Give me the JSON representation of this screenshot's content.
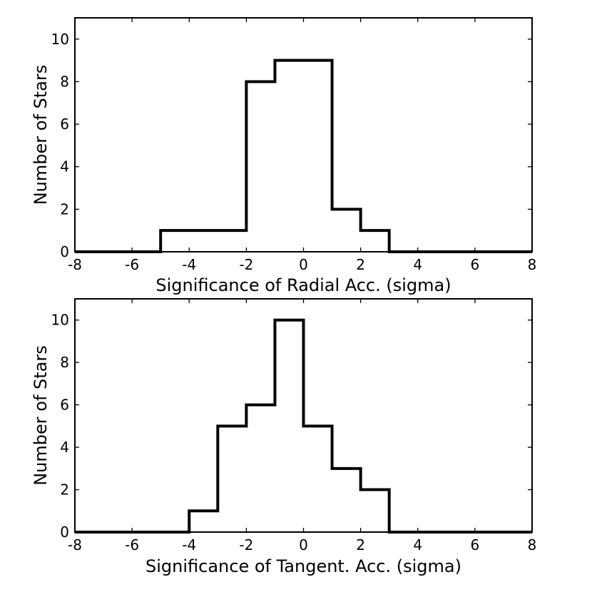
{
  "chart_data": [
    {
      "type": "histogram",
      "xlabel": "Significance of Radial Acc. (sigma)",
      "ylabel": "Number of Stars",
      "xlim": [
        -8,
        8
      ],
      "ylim": [
        0,
        11
      ],
      "xticks": [
        -8,
        -6,
        -4,
        -2,
        0,
        2,
        4,
        6,
        8
      ],
      "yticks": [
        0,
        2,
        4,
        6,
        8,
        10
      ],
      "bin_edges": [
        -8,
        -7,
        -6,
        -5,
        -4,
        -3,
        -2,
        -1,
        0,
        1,
        2,
        3,
        4,
        5,
        6,
        7,
        8
      ],
      "counts": [
        0,
        0,
        0,
        1,
        1,
        1,
        8,
        9,
        9,
        2,
        1,
        0,
        0,
        0,
        0,
        0
      ],
      "grid": false
    },
    {
      "type": "histogram",
      "xlabel": "Significance of Tangent. Acc. (sigma)",
      "ylabel": "Number of Stars",
      "xlim": [
        -8,
        8
      ],
      "ylim": [
        0,
        11
      ],
      "xticks": [
        -8,
        -6,
        -4,
        -2,
        0,
        2,
        4,
        6,
        8
      ],
      "yticks": [
        0,
        2,
        4,
        6,
        8,
        10
      ],
      "bin_edges": [
        -8,
        -7,
        -6,
        -5,
        -4,
        -3,
        -2,
        -1,
        0,
        1,
        2,
        3,
        4,
        5,
        6,
        7,
        8
      ],
      "counts": [
        0,
        0,
        0,
        0,
        1,
        5,
        6,
        10,
        5,
        3,
        2,
        0,
        0,
        0,
        0,
        0
      ],
      "grid": false
    }
  ]
}
